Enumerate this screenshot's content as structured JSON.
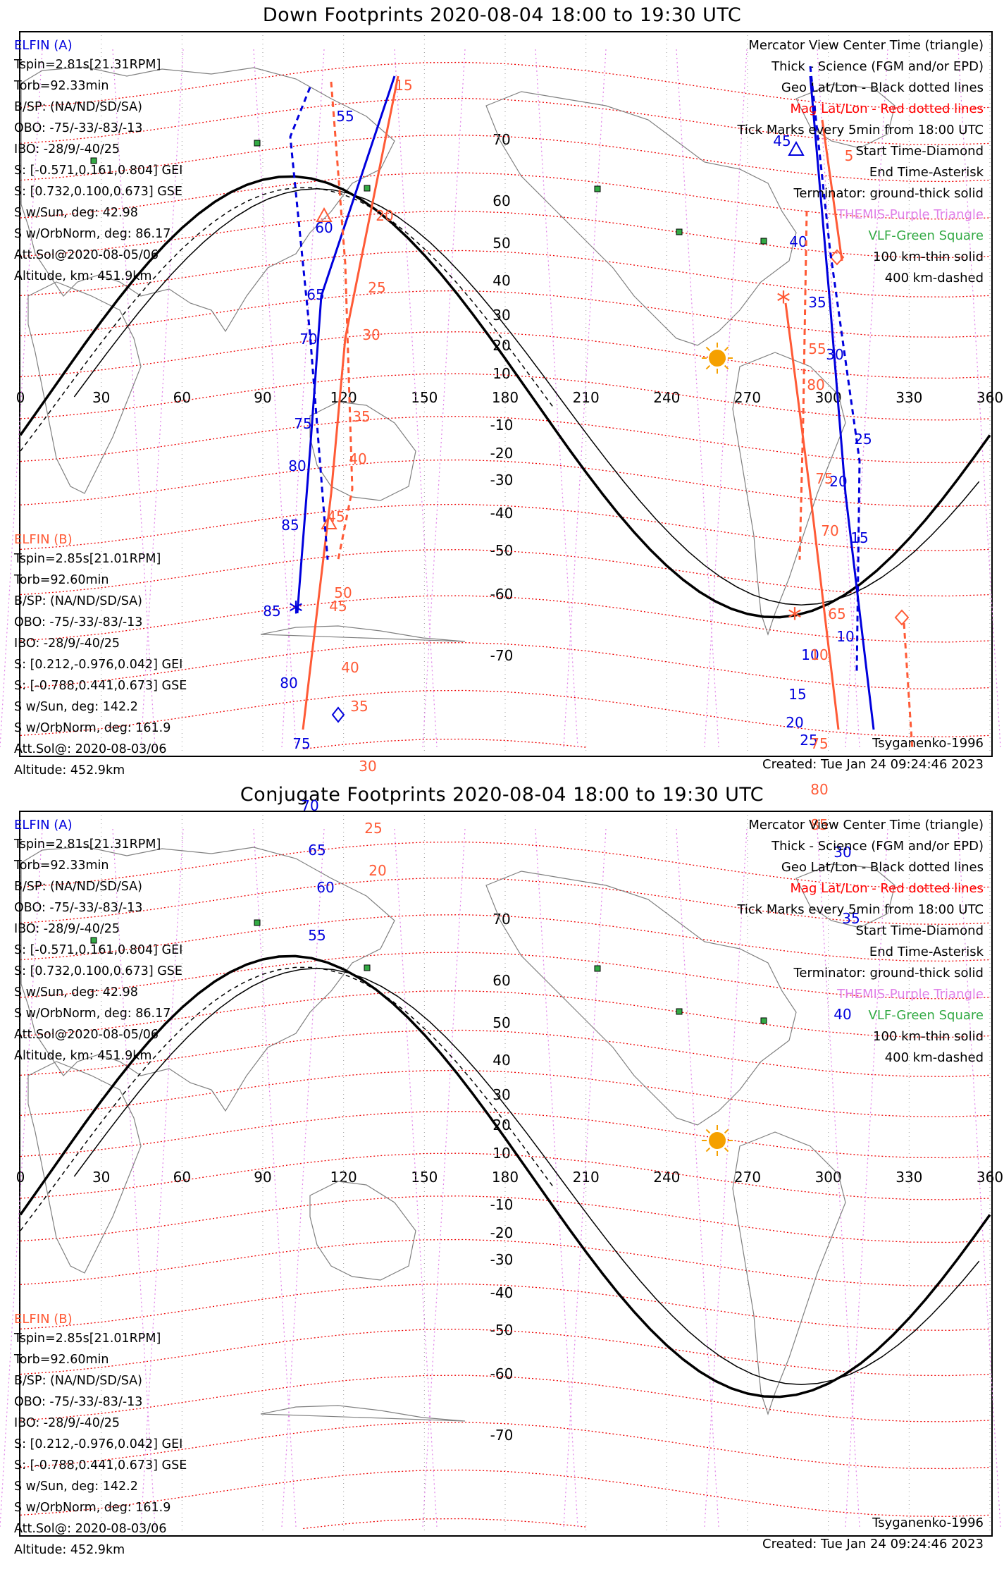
{
  "panels": [
    {
      "title": "Down Footprints 2020-08-04 18:00 to 19:30 UTC",
      "sat_a": {
        "name": "ELFIN (A)",
        "lines": [
          "Tspin=2.81s[21.31RPM]",
          "Torb=92.33min",
          "B/SP: (NA/ND/SD/SA)",
          "OBO: -75/-33/-83/-13",
          "IBO: -28/9/-40/25",
          "S: [-0.571,0.161,0.804] GEI",
          "S: [0.732,0.100,0.673] GSE",
          "S w/Sun, deg: 42.98",
          "S w/OrbNorm, deg: 86.17",
          "Att.Sol@2020-08-05/06",
          "Altitude, km: 451.9km"
        ]
      },
      "sat_b": {
        "name": "ELFIN (B)",
        "lines": [
          "Tspin=2.85s[21.01RPM]",
          "Torb=92.60min",
          "B/SP: (NA/ND/SD/SA)",
          "OBO: -75/-33/-83/-13",
          "IBO: -28/9/-40/25",
          "S: [0.212,-0.976,0.042] GEI",
          "S: [-0.788,0.441,0.673] GSE",
          "S w/Sun, deg: 142.2",
          "S w/OrbNorm, deg: 161.9",
          "Att.Sol@: 2020-08-03/06",
          "Altitude: 452.9km"
        ]
      },
      "legend": [
        {
          "text": "Mercator View Center Time (triangle)",
          "color": "#000000"
        },
        {
          "text": "Thick - Science (FGM and/or EPD)",
          "color": "#000000"
        },
        {
          "text": "Geo Lat/Lon - Black dotted lines",
          "color": "#000000"
        },
        {
          "text": "Mag Lat/Lon - Red dotted lines",
          "color": "#ff0000"
        },
        {
          "text": "Tick Marks every 5min from 18:00 UTC",
          "color": "#000000"
        },
        {
          "text": "Start Time-Diamond",
          "color": "#000000"
        },
        {
          "text": "End Time-Asterisk",
          "color": "#000000"
        },
        {
          "text": "Terminator: ground-thick solid",
          "color": "#000000"
        },
        {
          "text": "THEMIS-Purple Triangle",
          "color": "#e080e8"
        },
        {
          "text": "VLF-Green Square",
          "color": "#33aa44"
        },
        {
          "text": "100 km-thin solid",
          "color": "#000000"
        },
        {
          "text": "400 km-dashed",
          "color": "#000000"
        }
      ],
      "model": "Tsyganenko-1996",
      "created": "Created: Tue Jan 24 09:24:46 2023",
      "track_a_labels": [
        "55",
        "60",
        "65",
        "70",
        "75",
        "80",
        "85",
        "45",
        "40",
        "35",
        "30",
        "25",
        "20",
        "15",
        "10"
      ],
      "track_b_labels": [
        "15",
        "20",
        "25",
        "30",
        "35",
        "40",
        "45",
        "50",
        "5",
        "55",
        "80",
        "75",
        "70",
        "65"
      ]
    },
    {
      "title": "Conjugate Footprints 2020-08-04 18:00 to 19:30 UTC",
      "sat_a": {
        "name": "ELFIN (A)",
        "lines": [
          "Tspin=2.81s[21.31RPM]",
          "Torb=92.33min",
          "B/SP: (NA/ND/SD/SA)",
          "OBO: -75/-33/-83/-13",
          "IBO: -28/9/-40/25",
          "S: [-0.571,0.161,0.804] GEI",
          "S: [0.732,0.100,0.673] GSE",
          "S w/Sun, deg: 42.98",
          "S w/OrbNorm, deg: 86.17",
          "Att.Sol@2020-08-05/06",
          "Altitude, km: 451.9km"
        ]
      },
      "sat_b": {
        "name": "ELFIN (B)",
        "lines": [
          "Tspin=2.85s[21.01RPM]",
          "Torb=92.60min",
          "B/SP: (NA/ND/SD/SA)",
          "OBO: -75/-33/-83/-13",
          "IBO: -28/9/-40/25",
          "S: [0.212,-0.976,0.042] GEI",
          "S: [-0.788,0.441,0.673] GSE",
          "S w/Sun, deg: 142.2",
          "S w/OrbNorm, deg: 161.9",
          "Att.Sol@: 2020-08-03/06",
          "Altitude: 452.9km"
        ]
      },
      "legend": [
        {
          "text": "Mercator View Center Time (triangle)",
          "color": "#000000"
        },
        {
          "text": "Thick - Science (FGM and/or EPD)",
          "color": "#000000"
        },
        {
          "text": "Geo Lat/Lon - Black dotted lines",
          "color": "#000000"
        },
        {
          "text": "Mag Lat/Lon - Red dotted lines",
          "color": "#ff0000"
        },
        {
          "text": "Tick Marks every 5min from 18:00 UTC",
          "color": "#000000"
        },
        {
          "text": "Start Time-Diamond",
          "color": "#000000"
        },
        {
          "text": "End Time-Asterisk",
          "color": "#000000"
        },
        {
          "text": "Terminator: ground-thick solid",
          "color": "#000000"
        },
        {
          "text": "THEMIS-Purple Triangle",
          "color": "#e080e8"
        },
        {
          "text": "VLF-Green Square",
          "color": "#33aa44"
        },
        {
          "text": "100 km-thin solid",
          "color": "#000000"
        },
        {
          "text": "400 km-dashed",
          "color": "#000000"
        }
      ],
      "model": "Tsyganenko-1996",
      "created": "Created: Tue Jan 24 09:24:46 2023",
      "track_a_labels": [
        "85",
        "80",
        "75",
        "70",
        "65",
        "60",
        "55",
        "10",
        "15",
        "20",
        "25",
        "30",
        "35",
        "40"
      ],
      "track_b_labels": [
        "45",
        "40",
        "35",
        "30",
        "25",
        "20",
        "10",
        "75",
        "80",
        "85"
      ]
    }
  ],
  "lon_ticks": [
    "0",
    "30",
    "60",
    "90",
    "120",
    "150",
    "180",
    "210",
    "240",
    "270",
    "300",
    "330",
    "360"
  ],
  "lat_ticks": [
    "70",
    "60",
    "50",
    "40",
    "30",
    "20",
    "10",
    "-10",
    "-20",
    "-30",
    "-40",
    "-50",
    "-60",
    "-70"
  ],
  "colors": {
    "sat_a": "#0000dd",
    "sat_b": "#ff5a36",
    "mag_grid": "#ee0000",
    "themis": "#e080e8",
    "vlf": "#33aa44",
    "sun": "#f5a000",
    "coast": "#808080"
  }
}
